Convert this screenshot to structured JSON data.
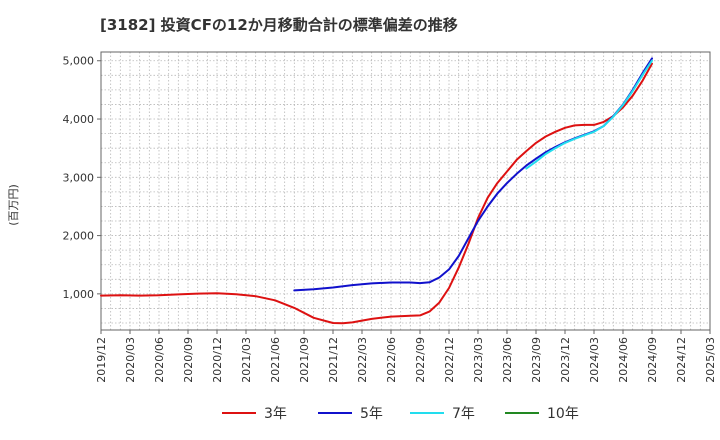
{
  "chart_data": {
    "type": "line",
    "title": "[3182]  投資CFの12か月移動合計の標準偏差の推移",
    "ylabel": "(百万円)",
    "xlabel": "",
    "ylim": [
      380,
      5150
    ],
    "yticks": [
      1000,
      2000,
      3000,
      4000,
      5000
    ],
    "ytick_labels": [
      "1,000",
      "2,000",
      "3,000",
      "4,000",
      "5,000"
    ],
    "x_start": "2019-12",
    "x_end": "2025-03",
    "xtick_labels": [
      "2019/12",
      "2020/03",
      "2020/06",
      "2020/09",
      "2020/12",
      "2021/03",
      "2021/06",
      "2021/09",
      "2021/12",
      "2022/03",
      "2022/06",
      "2022/09",
      "2022/12",
      "2023/03",
      "2023/06",
      "2023/09",
      "2023/12",
      "2024/03",
      "2024/06",
      "2024/09",
      "2024/12",
      "2025/03"
    ],
    "grid": true,
    "legend_position": "bottom",
    "series": [
      {
        "name": "3年",
        "color": "#dd1111",
        "points": [
          [
            "2019-12",
            970
          ],
          [
            "2020-02",
            975
          ],
          [
            "2020-04",
            970
          ],
          [
            "2020-06",
            975
          ],
          [
            "2020-08",
            990
          ],
          [
            "2020-10",
            1005
          ],
          [
            "2020-12",
            1010
          ],
          [
            "2021-02",
            995
          ],
          [
            "2021-04",
            960
          ],
          [
            "2021-06",
            890
          ],
          [
            "2021-08",
            760
          ],
          [
            "2021-10",
            590
          ],
          [
            "2021-12",
            500
          ],
          [
            "2022-01",
            495
          ],
          [
            "2022-02",
            510
          ],
          [
            "2022-04",
            570
          ],
          [
            "2022-06",
            610
          ],
          [
            "2022-08",
            625
          ],
          [
            "2022-09",
            630
          ],
          [
            "2022-10",
            700
          ],
          [
            "2022-11",
            850
          ],
          [
            "2022-12",
            1100
          ],
          [
            "2023-01",
            1450
          ],
          [
            "2023-02",
            1850
          ],
          [
            "2023-03",
            2300
          ],
          [
            "2023-04",
            2650
          ],
          [
            "2023-05",
            2900
          ],
          [
            "2023-06",
            3100
          ],
          [
            "2023-07",
            3300
          ],
          [
            "2023-08",
            3450
          ],
          [
            "2023-09",
            3590
          ],
          [
            "2023-10",
            3700
          ],
          [
            "2023-11",
            3780
          ],
          [
            "2023-12",
            3850
          ],
          [
            "2024-01",
            3890
          ],
          [
            "2024-02",
            3900
          ],
          [
            "2024-03",
            3900
          ],
          [
            "2024-04",
            3950
          ],
          [
            "2024-05",
            4050
          ],
          [
            "2024-06",
            4200
          ],
          [
            "2024-07",
            4400
          ],
          [
            "2024-08",
            4650
          ],
          [
            "2024-09",
            4950
          ]
        ]
      },
      {
        "name": "5年",
        "color": "#1111cc",
        "points": [
          [
            "2021-08",
            1060
          ],
          [
            "2021-10",
            1080
          ],
          [
            "2021-12",
            1110
          ],
          [
            "2022-02",
            1150
          ],
          [
            "2022-04",
            1180
          ],
          [
            "2022-06",
            1195
          ],
          [
            "2022-08",
            1195
          ],
          [
            "2022-09",
            1185
          ],
          [
            "2022-10",
            1200
          ],
          [
            "2022-11",
            1280
          ],
          [
            "2022-12",
            1420
          ],
          [
            "2023-01",
            1650
          ],
          [
            "2023-02",
            1950
          ],
          [
            "2023-03",
            2250
          ],
          [
            "2023-04",
            2500
          ],
          [
            "2023-05",
            2720
          ],
          [
            "2023-06",
            2900
          ],
          [
            "2023-07",
            3060
          ],
          [
            "2023-08",
            3200
          ],
          [
            "2023-09",
            3320
          ],
          [
            "2023-10",
            3430
          ],
          [
            "2023-11",
            3520
          ],
          [
            "2023-12",
            3600
          ],
          [
            "2024-01",
            3670
          ],
          [
            "2024-02",
            3730
          ],
          [
            "2024-03",
            3790
          ],
          [
            "2024-04",
            3880
          ],
          [
            "2024-05",
            4050
          ],
          [
            "2024-06",
            4250
          ],
          [
            "2024-07",
            4500
          ],
          [
            "2024-08",
            4780
          ],
          [
            "2024-09",
            5040
          ]
        ]
      },
      {
        "name": "7年",
        "color": "#22ddee",
        "points": [
          [
            "2023-08",
            3150
          ],
          [
            "2023-09",
            3270
          ],
          [
            "2023-10",
            3400
          ],
          [
            "2023-11",
            3500
          ],
          [
            "2023-12",
            3590
          ],
          [
            "2024-01",
            3660
          ],
          [
            "2024-02",
            3720
          ],
          [
            "2024-03",
            3780
          ],
          [
            "2024-04",
            3880
          ],
          [
            "2024-05",
            4040
          ],
          [
            "2024-06",
            4240
          ],
          [
            "2024-07",
            4480
          ],
          [
            "2024-08",
            4750
          ],
          [
            "2024-09",
            5000
          ]
        ]
      },
      {
        "name": "10年",
        "color": "#228822",
        "points": []
      }
    ]
  }
}
